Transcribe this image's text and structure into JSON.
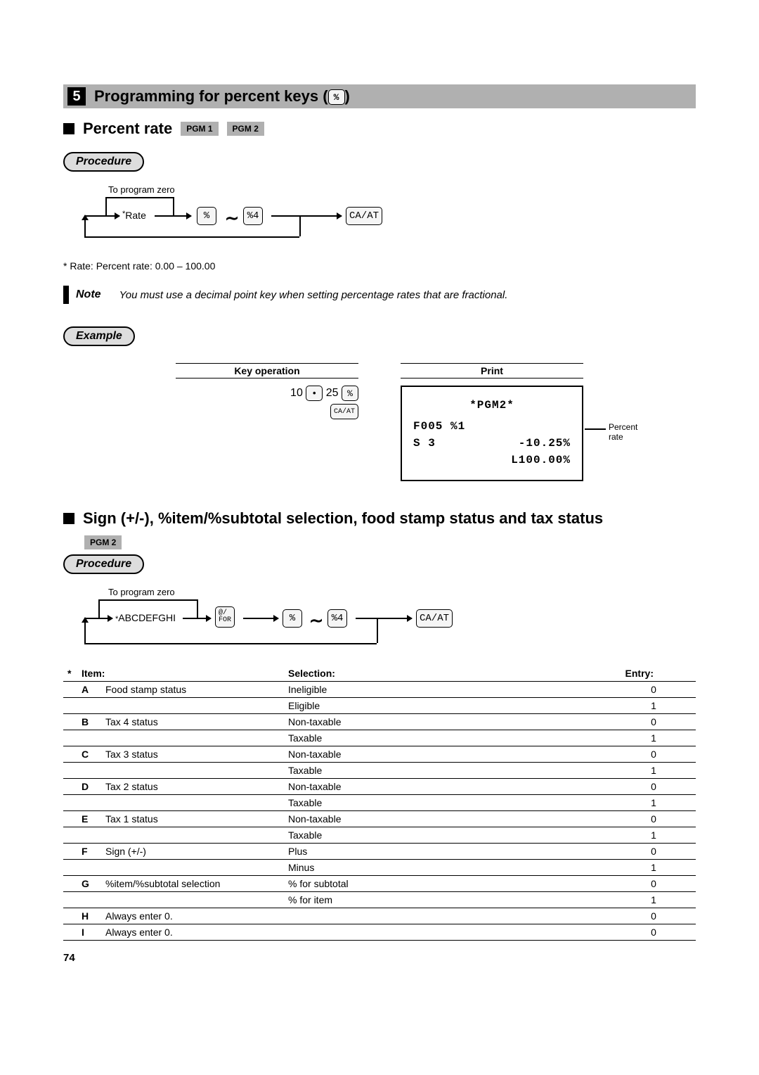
{
  "section": {
    "number": "5",
    "title": "Programming for percent keys (",
    "key": "%",
    "title_end": ")"
  },
  "percent_rate": {
    "header": "Percent rate",
    "pgm1": "PGM 1",
    "pgm2": "PGM 2",
    "procedure": "Procedure",
    "to_program_zero": "To program zero",
    "rate_prefix": "*",
    "rate": "Rate",
    "key_percent": "%",
    "key_percent4": "%4",
    "key_caat": "CA/AT",
    "rate_note": "* Rate: Percent rate: 0.00 – 100.00"
  },
  "note": {
    "label": "Note",
    "text": "You must use a decimal point key when setting percentage rates that are fractional."
  },
  "example": {
    "label": "Example",
    "key_operation_h": "Key operation",
    "print_h": "Print",
    "keyop_10": "10",
    "keyop_dot": "•",
    "keyop_25": "25",
    "keyop_percent": "%",
    "keyop_caat": "CA/AT",
    "print_pgm2": "*PGM2*",
    "print_line1_left": "F005 %1",
    "print_line2_left": "S       3",
    "print_line2_right": "-10.25%",
    "print_line3_right": "L100.00%",
    "annot_percent_rate_1": "Percent",
    "annot_percent_rate_2": "rate"
  },
  "sign_section": {
    "header": "Sign (+/-), %item/%subtotal selection, food stamp status and tax status",
    "pgm2": "PGM 2",
    "procedure": "Procedure",
    "to_program_zero": "To program zero",
    "abcdefghi_prefix": "*",
    "abcdefghi": "ABCDEFGHI",
    "key_for": "@/\nFOR",
    "key_percent": "%",
    "key_percent4": "%4",
    "key_caat": "CA/AT"
  },
  "table": {
    "star": "*",
    "h_item": "Item:",
    "h_selection": "Selection:",
    "h_entry": "Entry:",
    "rows": [
      {
        "letter": "A",
        "item": "Food stamp status",
        "selection": "Ineligible",
        "entry": "0"
      },
      {
        "letter": "",
        "item": "",
        "selection": "Eligible",
        "entry": "1"
      },
      {
        "letter": "B",
        "item": "Tax 4 status",
        "selection": "Non-taxable",
        "entry": "0"
      },
      {
        "letter": "",
        "item": "",
        "selection": "Taxable",
        "entry": "1"
      },
      {
        "letter": "C",
        "item": "Tax 3 status",
        "selection": "Non-taxable",
        "entry": "0"
      },
      {
        "letter": "",
        "item": "",
        "selection": "Taxable",
        "entry": "1"
      },
      {
        "letter": "D",
        "item": "Tax 2 status",
        "selection": "Non-taxable",
        "entry": "0"
      },
      {
        "letter": "",
        "item": "",
        "selection": "Taxable",
        "entry": "1"
      },
      {
        "letter": "E",
        "item": "Tax 1 status",
        "selection": "Non-taxable",
        "entry": "0"
      },
      {
        "letter": "",
        "item": "",
        "selection": "Taxable",
        "entry": "1"
      },
      {
        "letter": "F",
        "item": "Sign (+/-)",
        "selection": "Plus",
        "entry": "0"
      },
      {
        "letter": "",
        "item": "",
        "selection": "Minus",
        "entry": "1"
      },
      {
        "letter": "G",
        "item": "%item/%subtotal selection",
        "selection": "% for subtotal",
        "entry": "0"
      },
      {
        "letter": "",
        "item": "",
        "selection": "% for item",
        "entry": "1"
      },
      {
        "letter": "H",
        "item": "Always enter 0.",
        "selection": "",
        "entry": "0"
      },
      {
        "letter": "I",
        "item": "Always enter 0.",
        "selection": "",
        "entry": "0"
      }
    ]
  },
  "page": "74"
}
